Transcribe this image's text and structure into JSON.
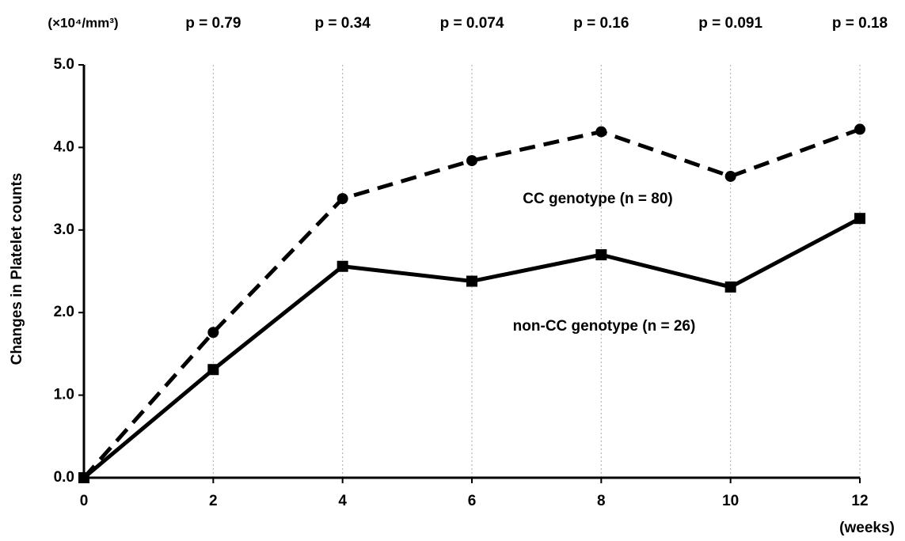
{
  "chart_data": {
    "type": "line",
    "y_label": "Changes in Platelet counts",
    "y_unit": "(×10⁴/mm³)",
    "x_label": "(weeks)",
    "x": [
      0,
      2,
      4,
      6,
      8,
      10,
      12
    ],
    "xlim": [
      0,
      12
    ],
    "xticks": [
      0,
      2,
      4,
      6,
      8,
      10,
      12
    ],
    "ylim": [
      0,
      5
    ],
    "yticks": [
      {
        "value": 0,
        "label": "0.0"
      },
      {
        "value": 1,
        "label": "1.0"
      },
      {
        "value": 2,
        "label": "2.0"
      },
      {
        "value": 3,
        "label": "3.0"
      },
      {
        "value": 4,
        "label": "4.0"
      },
      {
        "value": 5,
        "label": "5.0"
      }
    ],
    "grid": "x",
    "series": [
      {
        "name": "CC genotype (n = 80)",
        "color": "#000000",
        "line_style": "dashed",
        "marker": "circle",
        "values": [
          0,
          1.76,
          3.38,
          3.84,
          4.19,
          3.65,
          4.22
        ]
      },
      {
        "name": "non-CC genotype (n = 26)",
        "color": "#000000",
        "line_style": "solid",
        "marker": "square",
        "values": [
          0,
          1.31,
          2.56,
          2.38,
          2.7,
          2.31,
          3.14
        ]
      }
    ],
    "annotations": [
      {
        "x": 2,
        "text": "p = 0.79"
      },
      {
        "x": 4,
        "text": "p = 0.34"
      },
      {
        "x": 6,
        "text": "p = 0.074"
      },
      {
        "x": 8,
        "text": "p = 0.16"
      },
      {
        "x": 10,
        "text": "p = 0.091"
      },
      {
        "x": 12,
        "text": "p = 0.18"
      }
    ]
  }
}
